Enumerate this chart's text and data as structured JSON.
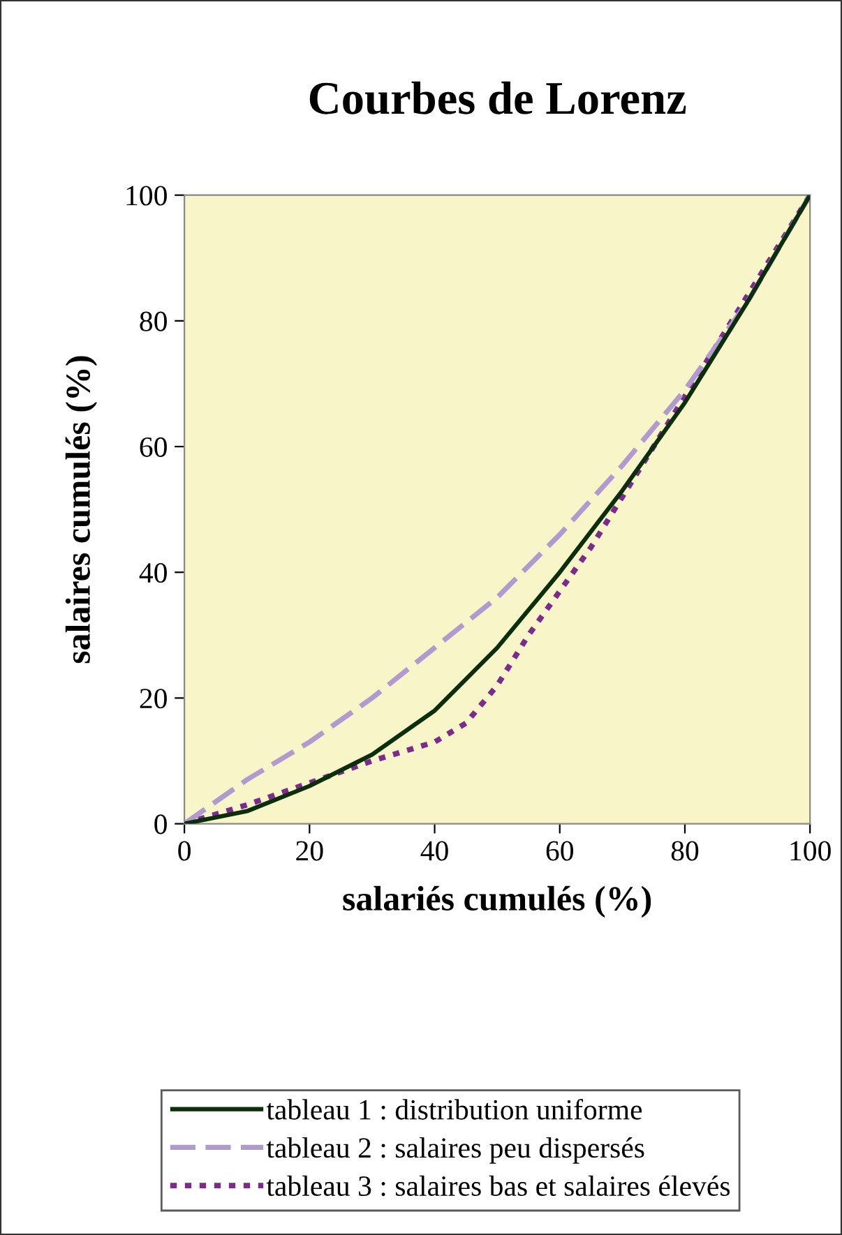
{
  "chart_data": {
    "type": "line",
    "title": "Courbes de Lorenz",
    "xlabel": "salariés cumulés (%)",
    "ylabel": "salaires cumulés (%)",
    "xlim": [
      0,
      100
    ],
    "ylim": [
      0,
      100
    ],
    "xticks": [
      0,
      20,
      40,
      60,
      80,
      100
    ],
    "yticks": [
      0,
      20,
      40,
      60,
      80,
      100
    ],
    "grid": false,
    "legend": "bottom",
    "series": [
      {
        "name": "tableau 1 : distribution uniforme",
        "color": "#0b2e0b",
        "line_style": "solid",
        "x": [
          0,
          10,
          20,
          30,
          40,
          50,
          60,
          70,
          80,
          90,
          100
        ],
        "values": [
          0,
          2,
          6,
          11,
          18,
          28,
          40,
          53,
          67,
          83,
          100
        ]
      },
      {
        "name": "tableau 2 : salaires peu dispersés",
        "color": "#b09ad0",
        "line_style": "dashed",
        "x": [
          0,
          10,
          20,
          30,
          40,
          50,
          60,
          70,
          80,
          90,
          100
        ],
        "values": [
          0,
          7,
          13,
          20,
          28,
          36,
          46,
          57,
          69,
          83,
          100
        ]
      },
      {
        "name": "tableau 3 : salaires bas et salaires élevés",
        "color": "#7b2a8e",
        "line_style": "dotted",
        "x": [
          0,
          10,
          20,
          30,
          40,
          45,
          50,
          55,
          60,
          65,
          70,
          80,
          90,
          100
        ],
        "values": [
          0,
          3,
          6.5,
          10,
          13,
          16,
          22,
          30,
          37,
          44,
          52,
          68,
          84,
          100
        ]
      }
    ]
  }
}
